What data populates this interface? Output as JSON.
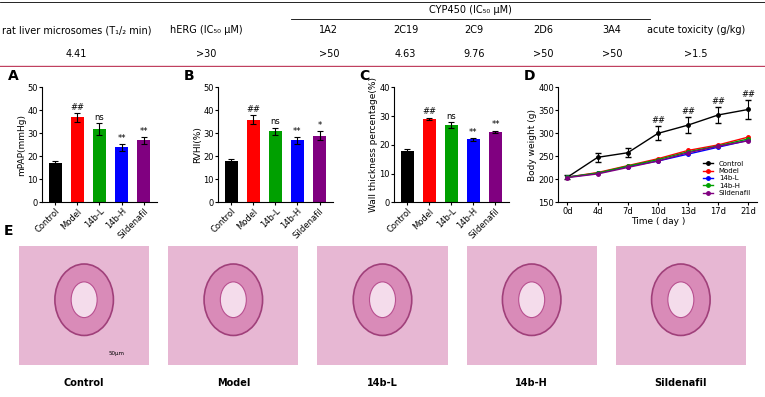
{
  "table": {
    "header": [
      "rat liver microsomes (T₁/₂ min)",
      "hERG (IC₅₀ μM)",
      {
        "label": "CYP450 (IC₅₀ μM)",
        "columns": [
          "1A2",
          "2C19",
          "2C9",
          "2D6",
          "3A4"
        ]
      },
      "acute toxicity (g/kg)"
    ],
    "rows": [
      [
        "4.41",
        ">30",
        ">50",
        "4.63",
        "9.76",
        ">50",
        ">50",
        ">1.5"
      ]
    ]
  },
  "chart_data": [
    {
      "type": "bar",
      "title": "A",
      "y_label": "mPAP(mmHg)",
      "categories": [
        "Control",
        "Model",
        "14b-L",
        "14b-H",
        "Sildenafil"
      ],
      "values": [
        17,
        37,
        32,
        24,
        27
      ],
      "errors": [
        1.2,
        2,
        2.5,
        1.5,
        1.5
      ],
      "significance": [
        null,
        "##",
        "ns",
        "**",
        "**"
      ],
      "colors": [
        "#000000",
        "#ff0000",
        "#00a000",
        "#0000ff",
        "#800080"
      ],
      "ylim": [
        0,
        50
      ],
      "yticks": [
        0,
        10,
        20,
        30,
        40,
        50
      ]
    },
    {
      "type": "bar",
      "title": "B",
      "y_label": "RVHI(%)",
      "categories": [
        "Control",
        "Model",
        "14b-L",
        "14b-H",
        "Sildenafil"
      ],
      "values": [
        18,
        36,
        31,
        27,
        29
      ],
      "errors": [
        1,
        2,
        1.5,
        1.5,
        2
      ],
      "significance": [
        null,
        "##",
        "ns",
        "**",
        "*"
      ],
      "colors": [
        "#000000",
        "#ff0000",
        "#00a000",
        "#0000ff",
        "#800080"
      ],
      "ylim": [
        0,
        50
      ],
      "yticks": [
        0,
        10,
        20,
        30,
        40,
        50
      ]
    },
    {
      "type": "bar",
      "title": "C",
      "y_label": "Wall thickness percentage(%)",
      "categories": [
        "Control",
        "Model",
        "14b-L",
        "14b-H",
        "Sildenafil"
      ],
      "values": [
        18,
        29,
        27,
        22,
        24.5
      ],
      "errors": [
        0.5,
        0.5,
        1,
        0.5,
        0.5
      ],
      "significance": [
        null,
        "##",
        "ns",
        "**",
        "**"
      ],
      "colors": [
        "#000000",
        "#ff0000",
        "#00a000",
        "#0000ff",
        "#800080"
      ],
      "ylim": [
        0,
        40
      ],
      "yticks": [
        0,
        10,
        20,
        30,
        40
      ]
    },
    {
      "type": "line",
      "title": "D",
      "y_label": "Body weight (g)",
      "x_label": "Time ( day )",
      "categories": [
        "0d",
        "4d",
        "7d",
        "10d",
        "13d",
        "17d",
        "21d"
      ],
      "significance": [
        null,
        null,
        null,
        "##",
        "##",
        "##",
        "##"
      ],
      "ylim": [
        150,
        400
      ],
      "yticks": [
        150,
        200,
        250,
        300,
        350,
        400
      ],
      "legend": "lower right",
      "marker": "o",
      "series": [
        {
          "name": "Control",
          "color": "#000000",
          "values": [
            205,
            248,
            258,
            300,
            318,
            340,
            352
          ],
          "errors": [
            5,
            10,
            10,
            15,
            18,
            18,
            20
          ]
        },
        {
          "name": "Model",
          "color": "#ff0000",
          "values": [
            205,
            215,
            230,
            245,
            263,
            275,
            292
          ]
        },
        {
          "name": "14b-L",
          "color": "#0000ff",
          "values": [
            205,
            213,
            228,
            240,
            255,
            270,
            285
          ]
        },
        {
          "name": "14b-H",
          "color": "#00a000",
          "values": [
            205,
            214,
            229,
            243,
            260,
            273,
            288
          ]
        },
        {
          "name": "Sildenafil",
          "color": "#800080",
          "values": [
            204,
            212,
            226,
            240,
            258,
            272,
            284
          ]
        }
      ]
    }
  ],
  "panel_E": {
    "title": "E",
    "labels": [
      "Control",
      "Model",
      "14b-L",
      "14b-H",
      "Sildenafil"
    ],
    "scale_bar": "50μm"
  }
}
